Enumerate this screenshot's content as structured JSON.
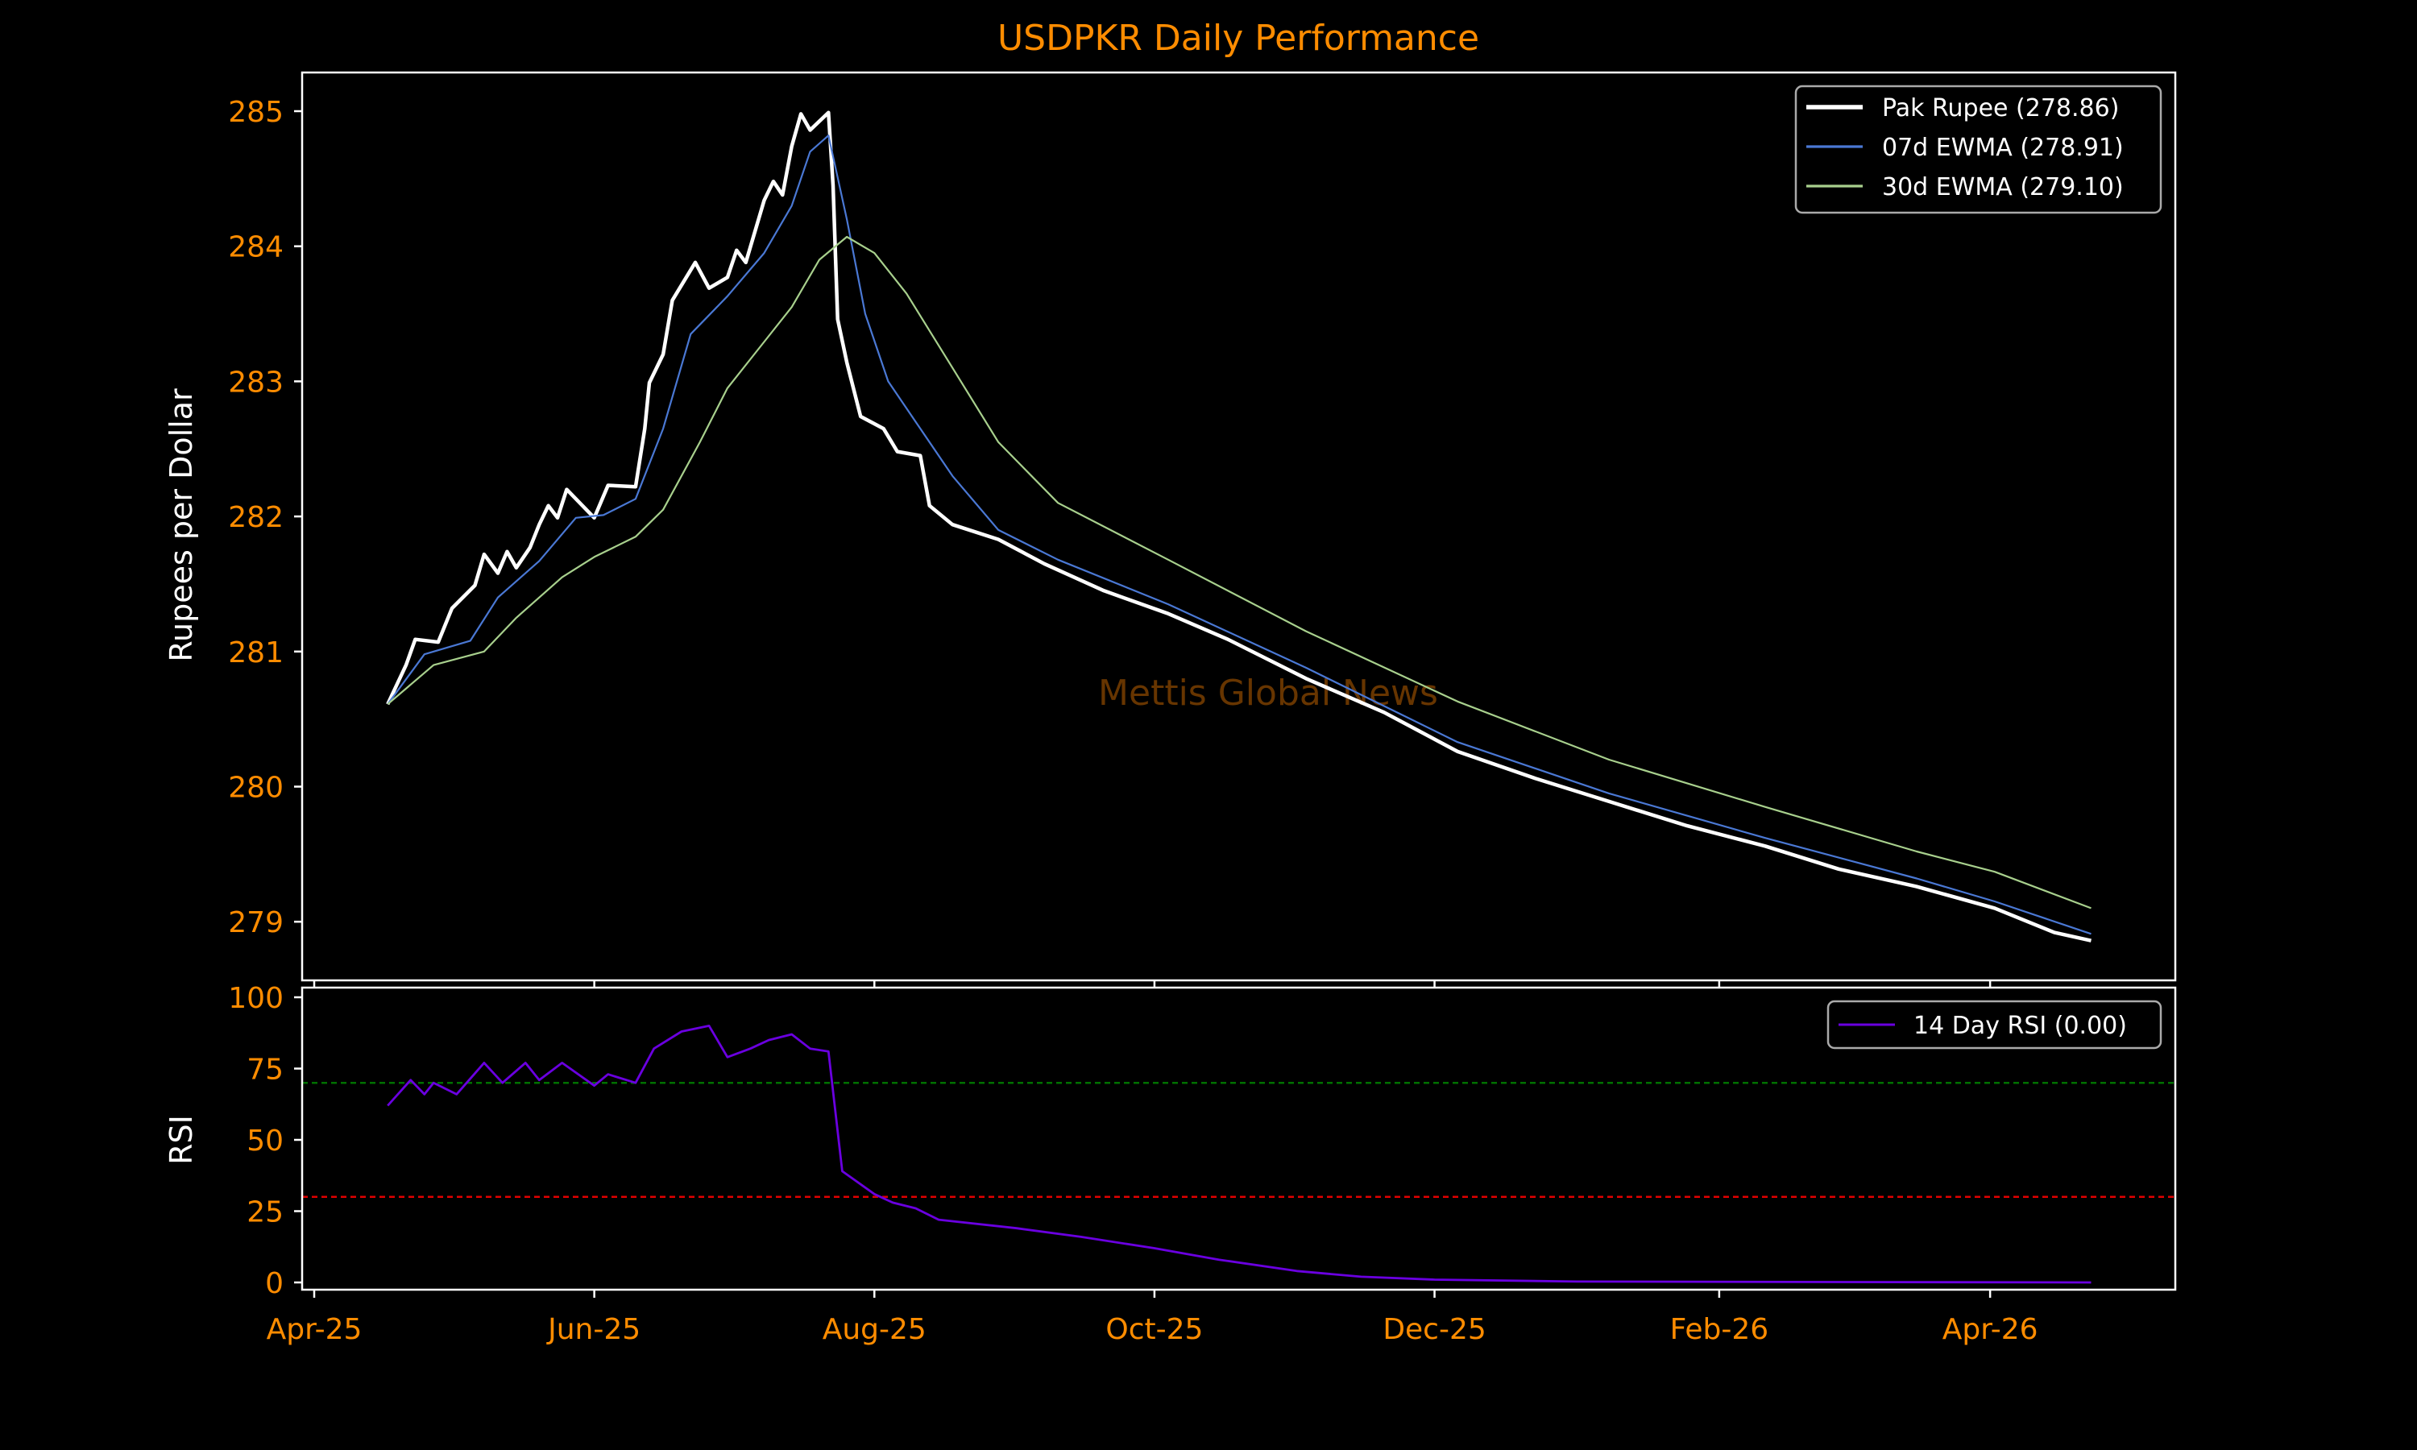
{
  "chart_data": [
    {
      "type": "line",
      "title": "USDPKR Daily Performance",
      "ylabel": "Rupees per Dollar",
      "ylim": [
        278.65,
        285.28
      ],
      "yticks": [
        "279",
        "280",
        "281",
        "282",
        "283",
        "284",
        "285"
      ],
      "grid": false,
      "legend_position": "top-right",
      "watermark": "Mettis Global News",
      "colors": {
        "title": "#ff8c00",
        "ticks": "#ff8c00",
        "watermark": "#7a3f00"
      },
      "series": [
        {
          "name": "Pak Rupee (278.86)",
          "color": "#ffffff",
          "points": [
            [
              "2025-04-17",
              280.61
            ],
            [
              "2025-04-21",
              280.9
            ],
            [
              "2025-04-23",
              281.09
            ],
            [
              "2025-04-28",
              281.07
            ],
            [
              "2025-05-01",
              281.32
            ],
            [
              "2025-05-06",
              281.49
            ],
            [
              "2025-05-08",
              281.72
            ],
            [
              "2025-05-11",
              281.58
            ],
            [
              "2025-05-13",
              281.74
            ],
            [
              "2025-05-15",
              281.62
            ],
            [
              "2025-05-18",
              281.77
            ],
            [
              "2025-05-20",
              281.94
            ],
            [
              "2025-05-22",
              282.08
            ],
            [
              "2025-05-24",
              281.99
            ],
            [
              "2025-05-26",
              282.2
            ],
            [
              "2025-06-01",
              281.99
            ],
            [
              "2025-06-04",
              282.23
            ],
            [
              "2025-06-10",
              282.22
            ],
            [
              "2025-06-12",
              282.65
            ],
            [
              "2025-06-13",
              282.99
            ],
            [
              "2025-06-16",
              283.2
            ],
            [
              "2025-06-18",
              283.6
            ],
            [
              "2025-06-23",
              283.88
            ],
            [
              "2025-06-26",
              283.69
            ],
            [
              "2025-06-30",
              283.77
            ],
            [
              "2025-07-02",
              283.97
            ],
            [
              "2025-07-04",
              283.88
            ],
            [
              "2025-07-08",
              284.34
            ],
            [
              "2025-07-10",
              284.48
            ],
            [
              "2025-07-12",
              284.38
            ],
            [
              "2025-07-14",
              284.74
            ],
            [
              "2025-07-16",
              284.98
            ],
            [
              "2025-07-18",
              284.86
            ],
            [
              "2025-07-22",
              284.99
            ],
            [
              "2025-07-23",
              284.45
            ],
            [
              "2025-07-24",
              283.46
            ],
            [
              "2025-07-26",
              283.14
            ],
            [
              "2025-07-29",
              282.74
            ],
            [
              "2025-08-03",
              282.65
            ],
            [
              "2025-08-06",
              282.48
            ],
            [
              "2025-08-11",
              282.45
            ],
            [
              "2025-08-13",
              282.08
            ],
            [
              "2025-08-18",
              281.94
            ],
            [
              "2025-08-28",
              281.83
            ],
            [
              "2025-09-07",
              281.65
            ],
            [
              "2025-09-20",
              281.45
            ],
            [
              "2025-10-04",
              281.28
            ],
            [
              "2025-10-17",
              281.09
            ],
            [
              "2025-11-03",
              280.8
            ],
            [
              "2025-11-20",
              280.55
            ],
            [
              "2025-12-06",
              280.26
            ],
            [
              "2025-12-23",
              280.06
            ],
            [
              "2026-01-08",
              279.89
            ],
            [
              "2026-01-25",
              279.71
            ],
            [
              "2026-02-11",
              279.56
            ],
            [
              "2026-02-27",
              279.39
            ],
            [
              "2026-03-16",
              279.26
            ],
            [
              "2026-04-02",
              279.1
            ],
            [
              "2026-04-15",
              278.92
            ],
            [
              "2026-04-23",
              278.86
            ]
          ]
        },
        {
          "name": "07d EWMA (278.91)",
          "color": "#4a78d4",
          "points": [
            [
              "2025-04-17",
              280.61
            ],
            [
              "2025-04-25",
              280.98
            ],
            [
              "2025-05-05",
              281.08
            ],
            [
              "2025-05-11",
              281.4
            ],
            [
              "2025-05-20",
              281.67
            ],
            [
              "2025-05-28",
              281.99
            ],
            [
              "2025-06-03",
              282.01
            ],
            [
              "2025-06-10",
              282.13
            ],
            [
              "2025-06-16",
              282.65
            ],
            [
              "2025-06-22",
              283.35
            ],
            [
              "2025-06-30",
              283.63
            ],
            [
              "2025-07-08",
              283.95
            ],
            [
              "2025-07-14",
              284.3
            ],
            [
              "2025-07-18",
              284.7
            ],
            [
              "2025-07-22",
              284.82
            ],
            [
              "2025-07-26",
              284.2
            ],
            [
              "2025-07-30",
              283.5
            ],
            [
              "2025-08-04",
              283.0
            ],
            [
              "2025-08-10",
              282.7
            ],
            [
              "2025-08-18",
              282.3
            ],
            [
              "2025-08-28",
              281.9
            ],
            [
              "2025-09-10",
              281.68
            ],
            [
              "2025-10-04",
              281.35
            ],
            [
              "2025-11-03",
              280.88
            ],
            [
              "2025-12-06",
              280.33
            ],
            [
              "2026-01-08",
              279.95
            ],
            [
              "2026-02-11",
              279.62
            ],
            [
              "2026-03-16",
              279.32
            ],
            [
              "2026-04-02",
              279.15
            ],
            [
              "2026-04-23",
              278.91
            ]
          ]
        },
        {
          "name": "30d EWMA (279.10)",
          "color": "#a8d08d",
          "points": [
            [
              "2025-04-17",
              280.61
            ],
            [
              "2025-04-27",
              280.9
            ],
            [
              "2025-05-08",
              281.0
            ],
            [
              "2025-05-15",
              281.25
            ],
            [
              "2025-05-25",
              281.55
            ],
            [
              "2025-06-01",
              281.7
            ],
            [
              "2025-06-10",
              281.85
            ],
            [
              "2025-06-16",
              282.05
            ],
            [
              "2025-06-24",
              282.55
            ],
            [
              "2025-06-30",
              282.95
            ],
            [
              "2025-07-07",
              283.25
            ],
            [
              "2025-07-14",
              283.55
            ],
            [
              "2025-07-20",
              283.9
            ],
            [
              "2025-07-26",
              284.07
            ],
            [
              "2025-08-01",
              283.95
            ],
            [
              "2025-08-08",
              283.65
            ],
            [
              "2025-08-18",
              283.1
            ],
            [
              "2025-08-28",
              282.55
            ],
            [
              "2025-09-10",
              282.1
            ],
            [
              "2025-10-04",
              281.68
            ],
            [
              "2025-11-03",
              281.15
            ],
            [
              "2025-12-06",
              280.63
            ],
            [
              "2026-01-08",
              280.2
            ],
            [
              "2026-02-11",
              279.85
            ],
            [
              "2026-03-16",
              279.52
            ],
            [
              "2026-04-02",
              279.37
            ],
            [
              "2026-04-23",
              279.1
            ]
          ]
        }
      ]
    },
    {
      "type": "line",
      "ylabel": "RSI",
      "ylim": [
        -3,
        104
      ],
      "yticks": [
        "0",
        "25",
        "50",
        "75",
        "100"
      ],
      "xticks": [
        "Apr-25",
        "Jun-25",
        "Aug-25",
        "Oct-25",
        "Dec-25",
        "Feb-26",
        "Apr-26"
      ],
      "xtick_dates": [
        "2025-04-01",
        "2025-06-01",
        "2025-08-01",
        "2025-10-01",
        "2025-12-01",
        "2026-02-01",
        "2026-04-01"
      ],
      "thresholds": [
        {
          "value": 70,
          "color": "#007000"
        },
        {
          "value": 30,
          "color": "#e00000"
        }
      ],
      "legend_position": "top-right",
      "series": [
        {
          "name": "14 Day RSI (0.00)",
          "color": "#6a00e0",
          "points": [
            [
              "2025-04-17",
              62
            ],
            [
              "2025-04-22",
              71
            ],
            [
              "2025-04-25",
              66
            ],
            [
              "2025-04-27",
              70
            ],
            [
              "2025-05-02",
              66
            ],
            [
              "2025-05-08",
              77
            ],
            [
              "2025-05-12",
              70
            ],
            [
              "2025-05-17",
              77
            ],
            [
              "2025-05-20",
              71
            ],
            [
              "2025-05-25",
              77
            ],
            [
              "2025-06-01",
              69
            ],
            [
              "2025-06-04",
              73
            ],
            [
              "2025-06-10",
              70
            ],
            [
              "2025-06-14",
              82
            ],
            [
              "2025-06-20",
              88
            ],
            [
              "2025-06-26",
              90
            ],
            [
              "2025-06-30",
              79
            ],
            [
              "2025-07-05",
              82
            ],
            [
              "2025-07-09",
              85
            ],
            [
              "2025-07-14",
              87
            ],
            [
              "2025-07-18",
              82
            ],
            [
              "2025-07-22",
              81
            ],
            [
              "2025-07-25",
              39
            ],
            [
              "2025-08-01",
              31
            ],
            [
              "2025-08-05",
              28
            ],
            [
              "2025-08-10",
              26
            ],
            [
              "2025-08-15",
              22
            ],
            [
              "2025-09-01",
              19
            ],
            [
              "2025-09-15",
              16
            ],
            [
              "2025-10-01",
              12
            ],
            [
              "2025-10-15",
              8
            ],
            [
              "2025-11-01",
              4
            ],
            [
              "2025-11-15",
              2
            ],
            [
              "2025-12-01",
              1
            ],
            [
              "2026-01-01",
              0.3
            ],
            [
              "2026-04-23",
              0
            ]
          ]
        }
      ]
    }
  ]
}
